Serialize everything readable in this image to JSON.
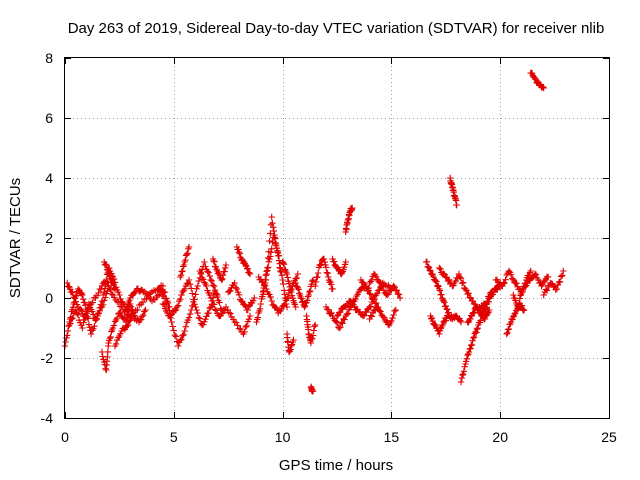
{
  "chart_data": {
    "type": "scatter",
    "title": "Day 263 of 2019, Sidereal Day-to-day VTEC variation (SDTVAR) for receiver nlib",
    "xlabel": "GPS time / hours",
    "ylabel": "SDTVAR / TECUs",
    "xlim": [
      0,
      25
    ],
    "ylim": [
      -4,
      8
    ],
    "grid": true,
    "marker": "+",
    "color": "#e00000",
    "xticks": [
      0,
      5,
      10,
      15,
      20,
      25
    ],
    "yticks": [
      -4,
      -2,
      0,
      2,
      4,
      6,
      8
    ],
    "series": [
      {
        "name": "SDTVAR",
        "tracks": [
          {
            "x": [
              0.0,
              0.2,
              0.4,
              0.6,
              0.8,
              1.0,
              1.2,
              1.5,
              1.8,
              2.0,
              2.2,
              2.5,
              2.8,
              3.0,
              3.3,
              3.6,
              4.0,
              4.4,
              4.8
            ],
            "y": [
              -1.6,
              -0.8,
              -0.2,
              0.3,
              0.1,
              -0.5,
              -1.2,
              -0.6,
              0.2,
              1.0,
              0.7,
              0.1,
              -0.4,
              0.0,
              0.3,
              0.2,
              -0.1,
              0.2,
              -0.3
            ]
          },
          {
            "x": [
              0.1,
              0.3,
              0.6,
              0.9,
              1.2,
              1.6,
              1.9,
              2.2,
              2.6,
              3.0,
              3.5,
              4.0,
              4.5
            ],
            "y": [
              0.5,
              0.2,
              -0.3,
              -0.6,
              -0.2,
              0.3,
              0.6,
              0.1,
              -0.3,
              -0.6,
              -0.2,
              0.2,
              0.4
            ]
          },
          {
            "x": [
              1.7,
              1.9,
              2.0,
              2.2,
              2.5,
              2.8,
              3.0,
              3.2
            ],
            "y": [
              -1.8,
              -2.4,
              -1.5,
              -1.0,
              -0.5,
              -0.8,
              -0.2,
              -0.7
            ]
          },
          {
            "x": [
              2.3,
              2.6,
              2.9,
              3.1,
              3.4,
              3.7
            ],
            "y": [
              -1.6,
              -1.1,
              -0.9,
              -0.5,
              -0.8,
              -0.4
            ]
          },
          {
            "x": [
              0.2,
              0.5,
              0.8,
              1.1,
              1.4,
              1.7,
              2.0
            ],
            "y": [
              -0.9,
              -0.4,
              -1.0,
              -0.2,
              -0.7,
              -0.3,
              0.4
            ]
          },
          {
            "x": [
              1.8,
              2.0,
              2.1,
              2.3
            ],
            "y": [
              1.2,
              0.9,
              0.6,
              0.3
            ]
          },
          {
            "x": [
              4.3,
              4.6,
              4.9,
              5.2,
              5.5,
              5.8,
              6.1,
              6.4,
              6.7,
              7.0
            ],
            "y": [
              0.3,
              0.2,
              -0.8,
              -1.6,
              -1.1,
              -0.4,
              0.4,
              1.2,
              0.6,
              0.1
            ]
          },
          {
            "x": [
              4.5,
              4.8,
              5.1,
              5.4,
              5.7,
              6.0,
              6.3,
              6.6,
              6.9,
              7.2
            ],
            "y": [
              -0.2,
              -0.6,
              -0.4,
              0.2,
              0.6,
              -0.3,
              -0.9,
              -0.5,
              0.2,
              -0.4
            ]
          },
          {
            "x": [
              5.3,
              5.5,
              5.7
            ],
            "y": [
              0.7,
              1.2,
              1.7
            ]
          },
          {
            "x": [
              6.2,
              6.5,
              6.8,
              7.1,
              7.4,
              7.8,
              8.2,
              8.5
            ],
            "y": [
              0.9,
              0.4,
              -0.2,
              -0.6,
              -0.3,
              -0.8,
              -1.2,
              -0.6
            ]
          },
          {
            "x": [
              6.8,
              7.0,
              7.2,
              7.4
            ],
            "y": [
              1.3,
              0.9,
              0.6,
              1.1
            ]
          },
          {
            "x": [
              7.5,
              7.8,
              8.1,
              8.4,
              8.7
            ],
            "y": [
              0.2,
              0.5,
              -0.1,
              -0.4,
              0.0
            ]
          },
          {
            "x": [
              7.9,
              8.1,
              8.3,
              8.5
            ],
            "y": [
              1.7,
              1.3,
              1.1,
              0.8
            ]
          },
          {
            "x": [
              8.8,
              9.0,
              9.2,
              9.4,
              9.6,
              9.8,
              10.0,
              10.2
            ],
            "y": [
              -0.8,
              -0.2,
              0.5,
              1.3,
              2.1,
              1.5,
              0.6,
              -0.3
            ]
          },
          {
            "x": [
              9.1,
              9.3,
              9.5,
              9.7,
              9.9
            ],
            "y": [
              0.2,
              1.0,
              2.7,
              1.8,
              0.9
            ]
          },
          {
            "x": [
              8.9,
              9.2,
              9.5,
              9.8,
              10.1,
              10.4,
              10.7
            ],
            "y": [
              0.7,
              0.4,
              -0.1,
              -0.5,
              -0.2,
              0.3,
              0.8
            ]
          },
          {
            "x": [
              10.0,
              10.2,
              10.4,
              10.6
            ],
            "y": [
              1.2,
              0.8,
              0.2,
              -0.3
            ]
          },
          {
            "x": [
              10.2,
              10.3,
              10.5
            ],
            "y": [
              -1.2,
              -1.8,
              -1.4
            ]
          },
          {
            "x": [
              10.6,
              10.8,
              11.0,
              11.2,
              11.4
            ],
            "y": [
              0.5,
              0.1,
              -0.3,
              0.1,
              0.6
            ]
          },
          {
            "x": [
              11.1,
              11.2,
              11.3,
              11.5
            ],
            "y": [
              -0.6,
              -1.2,
              -1.5,
              -0.9
            ]
          },
          {
            "x": [
              11.3,
              11.4
            ],
            "y": [
              -3.0,
              -3.1
            ]
          },
          {
            "x": [
              11.5,
              11.7,
              11.9,
              12.1,
              12.3
            ],
            "y": [
              0.4,
              1.1,
              1.3,
              0.7,
              0.3
            ]
          },
          {
            "x": [
              12.3,
              12.5,
              12.7,
              12.9
            ],
            "y": [
              1.3,
              1.0,
              0.8,
              1.2
            ]
          },
          {
            "x": [
              12.0,
              12.3,
              12.6,
              12.9,
              13.2,
              13.5,
              13.8,
              14.1,
              14.4
            ],
            "y": [
              -0.3,
              -0.6,
              -1.0,
              -0.6,
              -0.2,
              0.2,
              0.4,
              0.0,
              -0.3
            ]
          },
          {
            "x": [
              12.5,
              12.8,
              13.1,
              13.4,
              13.7,
              14.0,
              14.3,
              14.6,
              15.0
            ],
            "y": [
              -0.6,
              -0.3,
              -0.1,
              -0.4,
              -0.6,
              -0.3,
              0.1,
              0.5,
              0.3
            ]
          },
          {
            "x": [
              12.9,
              13.0,
              13.1,
              13.2
            ],
            "y": [
              2.2,
              2.6,
              2.9,
              3.0
            ]
          },
          {
            "x": [
              13.6,
              13.9,
              14.2,
              14.5,
              14.8,
              15.1,
              15.4
            ],
            "y": [
              0.6,
              0.3,
              0.8,
              0.5,
              0.1,
              0.4,
              0.0
            ]
          },
          {
            "x": [
              14.0,
              14.3,
              14.6,
              14.9,
              15.2
            ],
            "y": [
              -0.7,
              -0.3,
              -0.6,
              -0.9,
              -0.4
            ]
          },
          {
            "x": [
              16.6,
              16.8,
              17.0,
              17.2,
              17.4,
              17.6,
              17.8,
              18.0,
              18.2
            ],
            "y": [
              1.2,
              0.9,
              0.6,
              0.3,
              -0.1,
              -0.5,
              -0.7,
              -0.6,
              -0.8
            ]
          },
          {
            "x": [
              16.8,
              17.0,
              17.2,
              17.4,
              17.6
            ],
            "y": [
              -0.6,
              -0.9,
              -1.2,
              -0.8,
              -0.6
            ]
          },
          {
            "x": [
              17.2,
              17.5,
              17.8,
              18.1,
              18.4,
              18.7,
              19.0,
              19.3,
              19.6
            ],
            "y": [
              1.0,
              0.7,
              0.4,
              0.8,
              0.3,
              -0.1,
              -0.4,
              -0.2,
              0.2
            ]
          },
          {
            "x": [
              17.7,
              17.8,
              17.9,
              18.0
            ],
            "y": [
              4.0,
              3.7,
              3.4,
              3.1
            ]
          },
          {
            "x": [
              18.2,
              18.4,
              18.6,
              18.8,
              19.0,
              19.2,
              19.4,
              19.6,
              19.8,
              20.0
            ],
            "y": [
              -2.8,
              -2.2,
              -1.7,
              -1.3,
              -0.9,
              -0.5,
              -0.2,
              0.1,
              0.3,
              0.4
            ]
          },
          {
            "x": [
              18.5,
              18.7,
              18.9,
              19.1,
              19.3,
              19.5
            ],
            "y": [
              -0.8,
              -0.6,
              -0.3,
              -0.5,
              -0.7,
              -0.4
            ]
          },
          {
            "x": [
              19.8,
              20.1,
              20.4,
              20.7,
              21.0,
              21.3,
              21.6,
              21.9,
              22.2
            ],
            "y": [
              0.6,
              0.4,
              0.9,
              0.5,
              0.2,
              0.6,
              0.8,
              0.4,
              0.7
            ]
          },
          {
            "x": [
              20.3,
              20.5,
              20.7,
              20.9,
              21.1
            ],
            "y": [
              -1.2,
              -0.8,
              -0.5,
              -0.2,
              -0.4
            ]
          },
          {
            "x": [
              20.6,
              20.8,
              21.0,
              21.2,
              21.4
            ],
            "y": [
              0.1,
              -0.3,
              0.2,
              0.6,
              0.9
            ]
          },
          {
            "x": [
              21.4,
              21.6,
              21.8,
              22.0
            ],
            "y": [
              7.5,
              7.3,
              7.1,
              7.0
            ]
          },
          {
            "x": [
              22.0,
              22.3,
              22.6,
              22.9
            ],
            "y": [
              0.1,
              0.5,
              0.3,
              0.9
            ]
          }
        ]
      }
    ]
  }
}
